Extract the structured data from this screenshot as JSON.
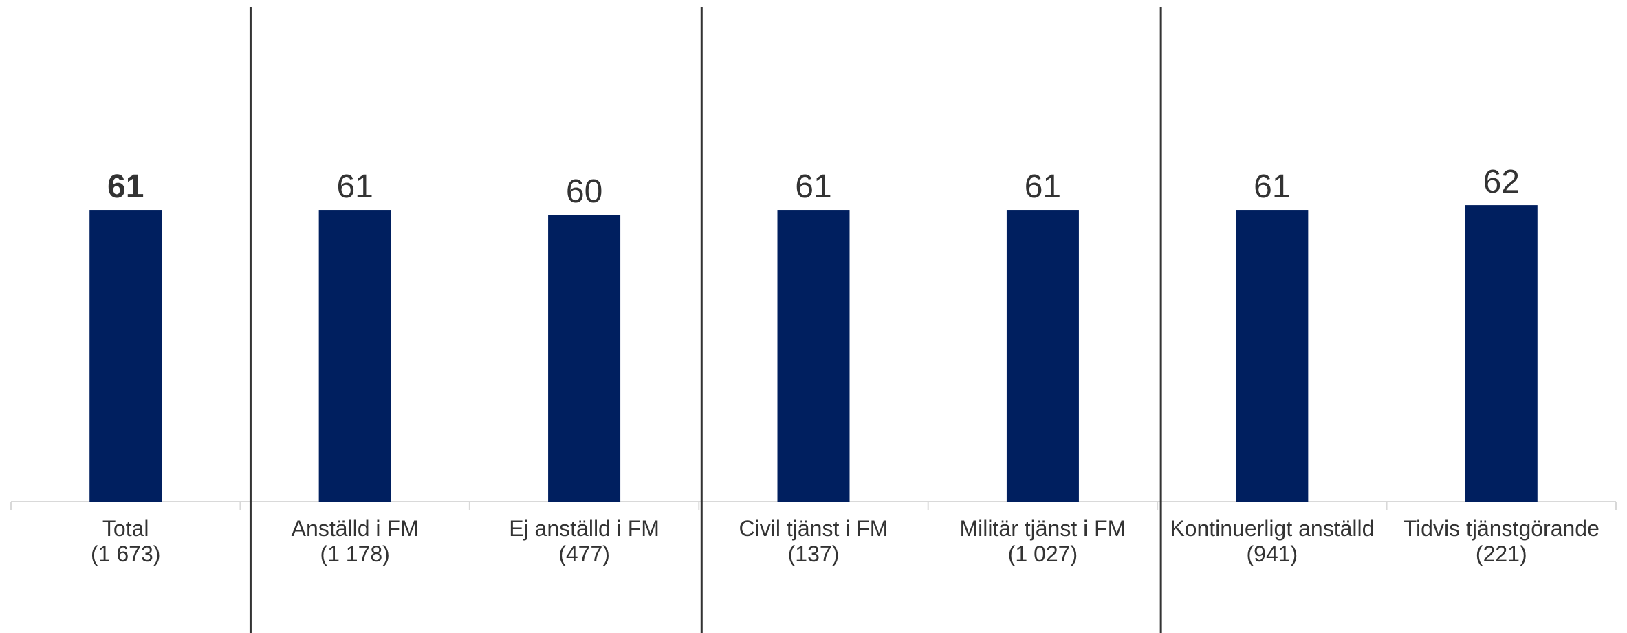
{
  "chart_data": {
    "type": "bar",
    "categories": [
      {
        "name": "Total",
        "n": "(1 673)"
      },
      {
        "name": "Anställd i FM",
        "n": "(1 178)"
      },
      {
        "name": "Ej anställd i FM",
        "n": "(477)"
      },
      {
        "name": "Civil tjänst i FM",
        "n": "(137)"
      },
      {
        "name": "Militär tjänst i FM",
        "n": "(1 027)"
      },
      {
        "name": "Kontinuerligt anställd",
        "n": "(941)"
      },
      {
        "name": "Tidvis tjänstgörande",
        "n": "(221)"
      }
    ],
    "values": [
      61,
      61,
      60,
      61,
      61,
      61,
      62
    ],
    "bold_value_index": 0,
    "group_separators_after": [
      0,
      2,
      4
    ],
    "ylim": [
      0,
      100
    ],
    "bar_color": "#001f5f",
    "separator_color": "#333333",
    "axis_color": "#d9d9d9",
    "grid": false
  }
}
